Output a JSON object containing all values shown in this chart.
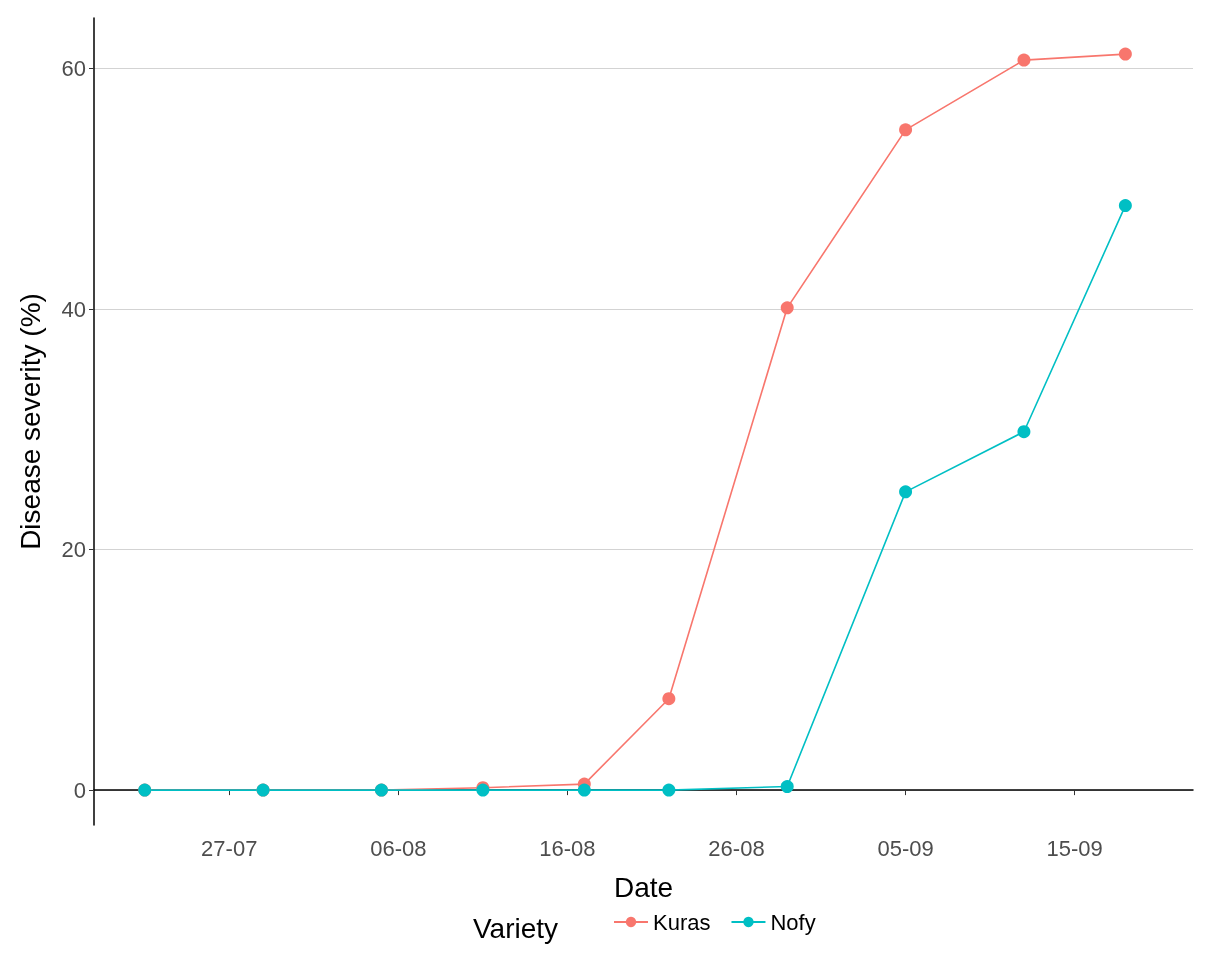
{
  "chart_data": {
    "type": "line",
    "xlabel": "Date",
    "ylabel": "Disease severity (%)",
    "legend_title": "Variety",
    "x": [
      "--07-22",
      "--07-29",
      "--08-05",
      "--08-11",
      "--08-17",
      "--08-22",
      "--08-29",
      "--09-05",
      "--09-12",
      "--09-18"
    ],
    "series": [
      {
        "name": "Kuras",
        "color": "#f8766d",
        "values": [
          0,
          0,
          0,
          0.2,
          0.5,
          7.6,
          40.1,
          54.9,
          60.7,
          61.2
        ]
      },
      {
        "name": "Nofy",
        "color": "#00bfc4",
        "values": [
          0,
          0,
          0,
          0,
          0,
          0,
          0.3,
          24.8,
          29.8,
          48.6
        ]
      }
    ],
    "xlim": [
      "--07-19",
      "--09-22"
    ],
    "xticks": [
      {
        "value": "--07-27",
        "label": "27-07"
      },
      {
        "value": "--08-06",
        "label": "06-08"
      },
      {
        "value": "--08-16",
        "label": "16-08"
      },
      {
        "value": "--08-26",
        "label": "26-08"
      },
      {
        "value": "--09-05",
        "label": "05-09"
      },
      {
        "value": "--09-15",
        "label": "15-09"
      }
    ],
    "ylim": [
      -2.9,
      64.2
    ],
    "yticks": [
      0,
      20,
      40,
      60
    ],
    "grid": "y",
    "legend": "bottom",
    "marker": "circle",
    "line_style": "solid"
  }
}
